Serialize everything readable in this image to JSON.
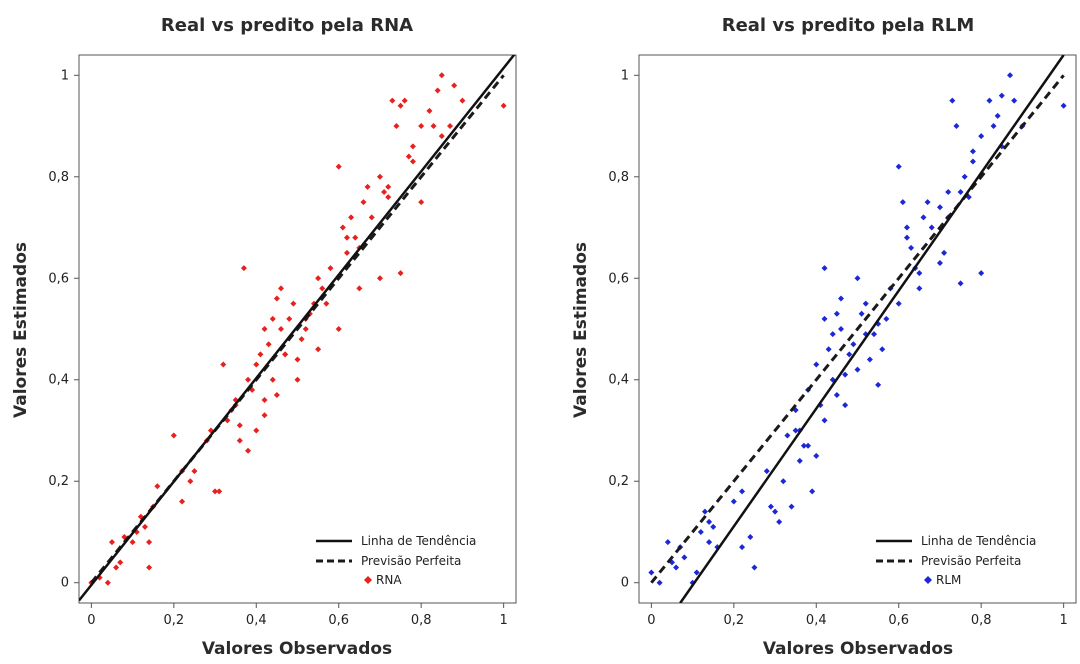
{
  "chart_data": [
    {
      "type": "scatter",
      "title": "Real vs predito pela RNA",
      "xlabel": "Valores Observados",
      "ylabel": "Valores Estimados",
      "xlim": [
        -0.03,
        1.03
      ],
      "ylim": [
        -0.04,
        1.04
      ],
      "xticks": [
        0,
        0.2,
        0.4,
        0.6,
        0.8,
        1
      ],
      "xtick_labels": [
        "0",
        "0,2",
        "0,4",
        "0,6",
        "0,8",
        "1"
      ],
      "yticks": [
        0,
        0.2,
        0.4,
        0.6,
        0.8,
        1
      ],
      "ytick_labels": [
        "0",
        "0,2",
        "0,4",
        "0,6",
        "0,8",
        "1"
      ],
      "grid": false,
      "legend_position": "bottom-right",
      "legend": {
        "trend": "Linha de Tendência",
        "perfect": "Previsão Perfeita",
        "points": "RNA"
      },
      "point_color": "#e8201e",
      "trend_line": {
        "x": [
          -0.03,
          1.03
        ],
        "y": [
          -0.035,
          1.045
        ]
      },
      "perfect_line": {
        "x": [
          0,
          1
        ],
        "y": [
          0,
          1
        ]
      },
      "series": [
        {
          "name": "RNA",
          "x": [
            0.0,
            0.02,
            0.04,
            0.05,
            0.06,
            0.07,
            0.08,
            0.1,
            0.11,
            0.12,
            0.13,
            0.14,
            0.15,
            0.16,
            0.2,
            0.22,
            0.24,
            0.25,
            0.28,
            0.29,
            0.31,
            0.32,
            0.33,
            0.34,
            0.35,
            0.36,
            0.37,
            0.38,
            0.39,
            0.4,
            0.41,
            0.42,
            0.42,
            0.43,
            0.44,
            0.45,
            0.46,
            0.46,
            0.47,
            0.48,
            0.49,
            0.5,
            0.51,
            0.52,
            0.53,
            0.54,
            0.55,
            0.56,
            0.57,
            0.58,
            0.6,
            0.61,
            0.62,
            0.63,
            0.64,
            0.65,
            0.66,
            0.67,
            0.68,
            0.7,
            0.71,
            0.72,
            0.73,
            0.74,
            0.75,
            0.76,
            0.77,
            0.78,
            0.8,
            0.82,
            0.84,
            0.85,
            0.87,
            0.88,
            0.9,
            1.0,
            0.14,
            0.22,
            0.3,
            0.35,
            0.4,
            0.45,
            0.5,
            0.55,
            0.6,
            0.65,
            0.7,
            0.75,
            0.8,
            0.85,
            0.42,
            0.44,
            0.47,
            0.38,
            0.36,
            0.52,
            0.62,
            0.72,
            0.78,
            0.83
          ],
          "y": [
            0.0,
            0.01,
            0.0,
            0.08,
            0.03,
            0.04,
            0.09,
            0.08,
            0.1,
            0.13,
            0.11,
            0.08,
            0.15,
            0.19,
            0.29,
            0.16,
            0.2,
            0.22,
            0.28,
            0.3,
            0.18,
            0.43,
            0.32,
            0.34,
            0.36,
            0.31,
            0.62,
            0.4,
            0.38,
            0.43,
            0.45,
            0.5,
            0.36,
            0.47,
            0.52,
            0.56,
            0.5,
            0.58,
            0.45,
            0.52,
            0.55,
            0.44,
            0.48,
            0.5,
            0.53,
            0.55,
            0.6,
            0.58,
            0.55,
            0.62,
            0.82,
            0.7,
            0.65,
            0.72,
            0.68,
            0.66,
            0.75,
            0.78,
            0.72,
            0.8,
            0.77,
            0.78,
            0.95,
            0.9,
            0.94,
            0.95,
            0.84,
            0.86,
            0.9,
            0.93,
            0.97,
            1.0,
            0.9,
            0.98,
            0.95,
            0.94,
            0.03,
            0.22,
            0.18,
            0.35,
            0.3,
            0.37,
            0.4,
            0.46,
            0.5,
            0.58,
            0.6,
            0.61,
            0.75,
            0.88,
            0.33,
            0.4,
            0.45,
            0.26,
            0.28,
            0.52,
            0.68,
            0.76,
            0.83,
            0.9
          ]
        }
      ]
    },
    {
      "type": "scatter",
      "title": "Real vs predito pela RLM",
      "xlabel": "Valores Observados",
      "ylabel": "Valores Estimados",
      "xlim": [
        -0.03,
        1.03
      ],
      "ylim": [
        -0.04,
        1.04
      ],
      "xticks": [
        0,
        0.2,
        0.4,
        0.6,
        0.8,
        1
      ],
      "xtick_labels": [
        "0",
        "0,2",
        "0,4",
        "0,6",
        "0,8",
        "1"
      ],
      "yticks": [
        0,
        0.2,
        0.4,
        0.6,
        0.8,
        1
      ],
      "ytick_labels": [
        "0",
        "0,2",
        "0,4",
        "0,6",
        "0,8",
        "1"
      ],
      "grid": false,
      "legend_position": "bottom-right",
      "legend": {
        "trend": "Linha de Tendência",
        "perfect": "Previsão Perfeita",
        "points": "RLM"
      },
      "point_color": "#1c27d8",
      "trend_line": {
        "x": [
          0.07,
          1.0
        ],
        "y": [
          -0.04,
          1.04
        ]
      },
      "perfect_line": {
        "x": [
          0,
          1
        ],
        "y": [
          0,
          1
        ]
      },
      "series": [
        {
          "name": "RLM",
          "x": [
            0.0,
            0.02,
            0.04,
            0.05,
            0.06,
            0.07,
            0.08,
            0.1,
            0.11,
            0.12,
            0.13,
            0.14,
            0.15,
            0.16,
            0.2,
            0.22,
            0.24,
            0.25,
            0.28,
            0.29,
            0.31,
            0.32,
            0.33,
            0.34,
            0.35,
            0.36,
            0.37,
            0.38,
            0.39,
            0.4,
            0.41,
            0.42,
            0.42,
            0.43,
            0.44,
            0.45,
            0.46,
            0.46,
            0.47,
            0.48,
            0.49,
            0.5,
            0.51,
            0.52,
            0.53,
            0.54,
            0.55,
            0.56,
            0.57,
            0.58,
            0.6,
            0.61,
            0.62,
            0.63,
            0.64,
            0.65,
            0.66,
            0.67,
            0.68,
            0.7,
            0.71,
            0.72,
            0.73,
            0.74,
            0.75,
            0.76,
            0.77,
            0.78,
            0.8,
            0.82,
            0.84,
            0.85,
            0.87,
            0.88,
            0.9,
            1.0,
            0.14,
            0.22,
            0.3,
            0.35,
            0.4,
            0.45,
            0.5,
            0.55,
            0.6,
            0.65,
            0.7,
            0.75,
            0.8,
            0.85,
            0.42,
            0.44,
            0.47,
            0.38,
            0.36,
            0.52,
            0.62,
            0.72,
            0.78,
            0.83
          ],
          "y": [
            0.02,
            0.0,
            0.08,
            0.04,
            0.03,
            0.07,
            0.05,
            0.0,
            0.02,
            0.1,
            0.14,
            0.08,
            0.11,
            0.07,
            0.16,
            0.18,
            0.09,
            0.03,
            0.22,
            0.15,
            0.12,
            0.2,
            0.29,
            0.15,
            0.34,
            0.3,
            0.27,
            0.38,
            0.18,
            0.43,
            0.35,
            0.62,
            0.52,
            0.46,
            0.49,
            0.53,
            0.5,
            0.56,
            0.41,
            0.45,
            0.47,
            0.6,
            0.53,
            0.55,
            0.44,
            0.49,
            0.51,
            0.46,
            0.52,
            0.58,
            0.82,
            0.75,
            0.68,
            0.66,
            0.62,
            0.61,
            0.72,
            0.75,
            0.7,
            0.74,
            0.65,
            0.77,
            0.95,
            0.9,
            0.77,
            0.8,
            0.76,
            0.83,
            0.88,
            0.95,
            0.92,
            0.96,
            1.0,
            0.95,
            0.9,
            0.94,
            0.12,
            0.07,
            0.14,
            0.3,
            0.25,
            0.37,
            0.42,
            0.39,
            0.55,
            0.58,
            0.63,
            0.59,
            0.61,
            0.86,
            0.32,
            0.4,
            0.35,
            0.27,
            0.24,
            0.49,
            0.7,
            0.72,
            0.85,
            0.9
          ]
        }
      ]
    }
  ]
}
